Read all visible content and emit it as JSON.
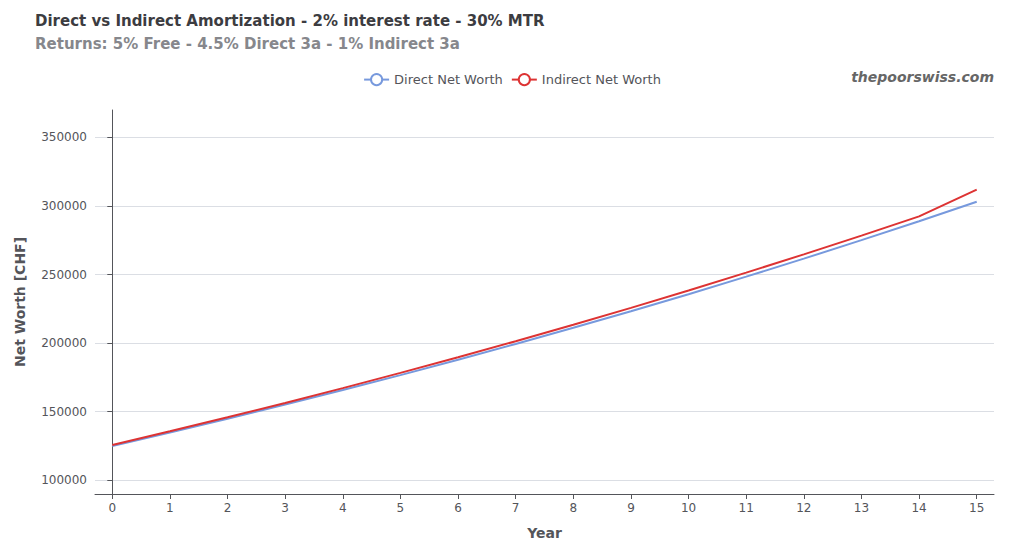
{
  "chart_data": {
    "type": "line",
    "title": "Direct vs Indirect Amortization - 2% interest rate - 30% MTR",
    "subtitle": "Returns: 5% Free - 4.5% Direct 3a - 1% Indirect 3a",
    "annotations": [
      "thepoorswiss.com"
    ],
    "xlabel": "Year",
    "ylabel": "Net Worth [CHF]",
    "x": [
      0,
      1,
      2,
      3,
      4,
      5,
      6,
      7,
      8,
      9,
      10,
      11,
      12,
      13,
      14,
      15
    ],
    "series": [
      {
        "name": "Direct Net Worth",
        "color": "#7799dd",
        "values": [
          125000,
          134800,
          144900,
          155200,
          165800,
          176700,
          187900,
          199400,
          211200,
          223300,
          235700,
          248500,
          261600,
          275100,
          288900,
          303100
        ]
      },
      {
        "name": "Indirect Net Worth",
        "color": "#dd3333",
        "values": [
          125800,
          135700,
          145900,
          156400,
          167200,
          178300,
          189700,
          201400,
          213400,
          225700,
          238400,
          251400,
          264700,
          278400,
          292400,
          312000
        ]
      }
    ],
    "xlim": [
      -0.3,
      15.3
    ],
    "xticks": [
      0,
      1,
      2,
      3,
      4,
      5,
      6,
      7,
      8,
      9,
      10,
      11,
      12,
      13,
      14,
      15
    ],
    "ylim": [
      90000,
      370000
    ],
    "yticks": [
      100000,
      150000,
      200000,
      250000,
      300000,
      350000
    ],
    "grid": true,
    "legend": "top"
  }
}
